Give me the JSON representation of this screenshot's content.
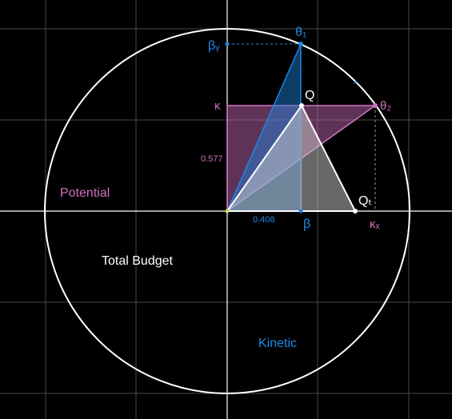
{
  "labels": {
    "theta1": "θ₁",
    "theta2": "θ₂",
    "q": "Q",
    "qt": "Qₜ",
    "beta": "β",
    "beta_y": "βᵧ",
    "kappa": "κ",
    "kappa_x": "κₓ",
    "value_kappa": "0.577",
    "value_beta": "0.408"
  },
  "regions": {
    "potential": "Potential",
    "total_budget": "Total Budget",
    "kinetic": "Kinetic"
  },
  "colors": {
    "background": "#000000",
    "grid": "#4a4a4a",
    "axis": "#ffffff",
    "circle": "#ffffff",
    "blue": "#1e88e5",
    "pink": "#d072c2",
    "gray": "#8a8a8a"
  }
}
